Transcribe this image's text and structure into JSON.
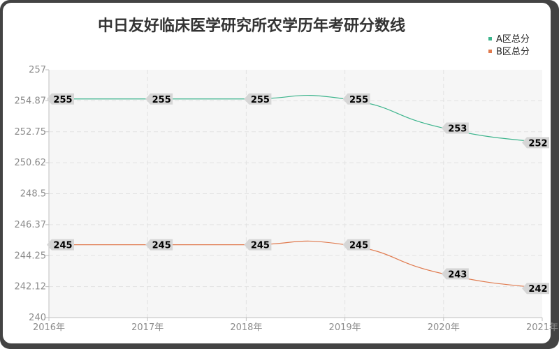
{
  "chart_data": {
    "type": "line",
    "title": "中日友好临床医学研究所农学历年考研分数线",
    "categories": [
      "2016年",
      "2017年",
      "2018年",
      "2019年",
      "2020年",
      "2021年"
    ],
    "yticks": [
      "257",
      "254.87",
      "252.75",
      "250.62",
      "248.5",
      "246.37",
      "244.25",
      "242.12",
      "240"
    ],
    "ylim": [
      240,
      257
    ],
    "grid": true,
    "legend_position": "top-right",
    "series": [
      {
        "name": "A区总分",
        "values": [
          255,
          255,
          255,
          255,
          253,
          252
        ],
        "color": "#3cb48c"
      },
      {
        "name": "B区总分",
        "values": [
          245,
          245,
          245,
          245,
          243,
          242
        ],
        "color": "#e07a4e"
      }
    ]
  }
}
